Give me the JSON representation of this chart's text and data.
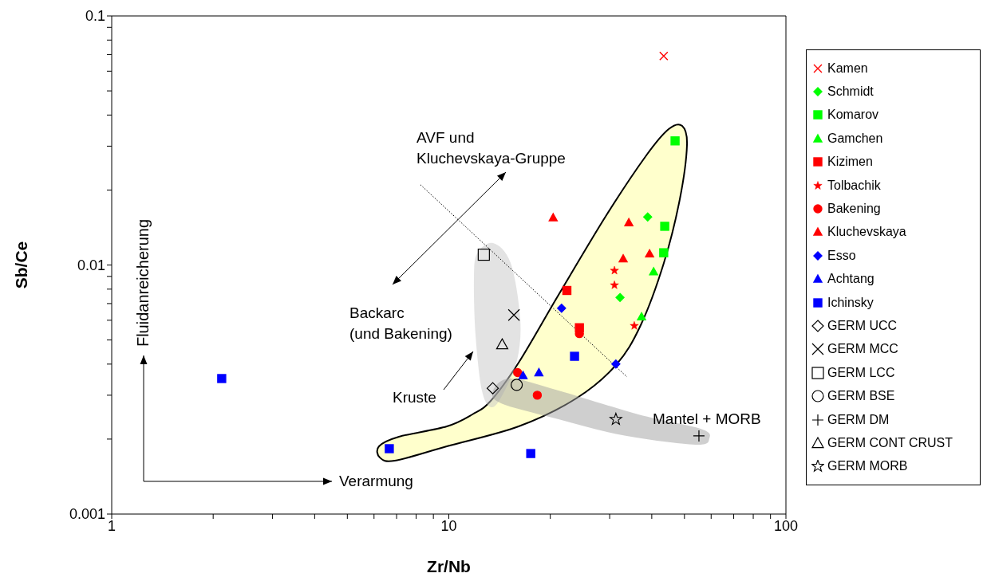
{
  "chart_data": {
    "type": "scatter",
    "xlabel": "Zr/Nb",
    "ylabel": "Sb/Ce",
    "log": "xy",
    "legend": "right",
    "xlim": [
      1,
      100
    ],
    "ylim": [
      0.001,
      0.1
    ],
    "xticks": [
      1,
      {
        "value": 2,
        "label": null
      },
      {
        "value": 3,
        "label": null
      },
      {
        "value": 4,
        "label": null
      },
      {
        "value": 5,
        "label": null
      },
      {
        "value": 6,
        "label": null
      },
      {
        "value": 7,
        "label": null
      },
      {
        "value": 8,
        "label": null
      },
      {
        "value": 9,
        "label": null
      },
      10,
      {
        "value": 20,
        "label": null
      },
      {
        "value": 30,
        "label": null
      },
      {
        "value": 40,
        "label": null
      },
      {
        "value": 50,
        "label": null
      },
      {
        "value": 60,
        "label": null
      },
      {
        "value": 70,
        "label": null
      },
      {
        "value": 80,
        "label": null
      },
      {
        "value": 90,
        "label": null
      },
      100
    ],
    "yticks": [
      0.001,
      {
        "value": 0.002,
        "label": null
      },
      {
        "value": 0.003,
        "label": null
      },
      {
        "value": 0.004,
        "label": null
      },
      {
        "value": 0.005,
        "label": null
      },
      {
        "value": 0.006,
        "label": null
      },
      {
        "value": 0.007,
        "label": null
      },
      {
        "value": 0.008,
        "label": null
      },
      {
        "value": 0.009,
        "label": null
      },
      0.01,
      {
        "value": 0.02,
        "label": null
      },
      {
        "value": 0.03,
        "label": null
      },
      {
        "value": 0.04,
        "label": null
      },
      {
        "value": 0.05,
        "label": null
      },
      {
        "value": 0.06,
        "label": null
      },
      {
        "value": 0.07,
        "label": null
      },
      {
        "value": 0.08,
        "label": null
      },
      {
        "value": 0.09,
        "label": null
      },
      0.1
    ],
    "annotations": [
      "AVF und\nKluchevskaya-Gruppe",
      "Backarc\n(und Bakening)",
      "Kruste",
      "Mantel + MORB",
      "Fluidanreicherung",
      "Verarmung"
    ],
    "series": [
      {
        "name": "Kamen",
        "color": "#ff0000",
        "marker": "cross",
        "x": [
          43.4
        ],
        "values": [
          0.069
        ]
      },
      {
        "name": "Schmidt",
        "color": "#00ff00",
        "marker": "diamond",
        "x": [
          38.9,
          32.2
        ],
        "values": [
          0.0156,
          0.0074
        ]
      },
      {
        "name": "Komarov",
        "color": "#00ff00",
        "marker": "square",
        "x": [
          46.9,
          43.7,
          43.4
        ],
        "values": [
          0.0315,
          0.0143,
          0.0112
        ]
      },
      {
        "name": "Gamchen",
        "color": "#00ff00",
        "marker": "triangle",
        "x": [
          40.5,
          37.3
        ],
        "values": [
          0.0094,
          0.0062
        ]
      },
      {
        "name": "Kizimen",
        "color": "#ff0000",
        "marker": "square",
        "x": [
          22.4,
          24.4
        ],
        "values": [
          0.0079,
          0.0056
        ]
      },
      {
        "name": "Tolbachik",
        "color": "#ff0000",
        "marker": "star",
        "x": [
          31.0,
          31.0,
          35.5
        ],
        "values": [
          0.0095,
          0.0083,
          0.0057
        ]
      },
      {
        "name": "Bakening",
        "color": "#ff0000",
        "marker": "circle",
        "x": [
          24.4,
          16.0,
          18.3
        ],
        "values": [
          0.0053,
          0.0037,
          0.003
        ]
      },
      {
        "name": "Kluchevskaya",
        "color": "#ff0000",
        "marker": "triangle",
        "x": [
          20.4,
          34.2,
          32.9,
          39.4
        ],
        "values": [
          0.0155,
          0.0148,
          0.0106,
          0.0111
        ]
      },
      {
        "name": "Esso",
        "color": "#0000ff",
        "marker": "diamond",
        "x": [
          21.6,
          31.3
        ],
        "values": [
          0.0067,
          0.004
        ]
      },
      {
        "name": "Achtang",
        "color": "#0000ff",
        "marker": "triangle",
        "x": [
          16.6,
          18.5
        ],
        "values": [
          0.0036,
          0.0037
        ]
      },
      {
        "name": "Ichinsky",
        "color": "#0000ff",
        "marker": "square",
        "x": [
          2.12,
          6.66,
          23.6,
          17.5
        ],
        "values": [
          0.0035,
          0.00183,
          0.0043,
          0.00175
        ]
      },
      {
        "name": "GERM UCC",
        "color": "#000000",
        "marker": "diamond-open",
        "x": [
          13.5
        ],
        "values": [
          0.0032
        ]
      },
      {
        "name": "GERM MCC",
        "color": "#000000",
        "marker": "cross-open",
        "x": [
          15.6
        ],
        "values": [
          0.0063
        ]
      },
      {
        "name": "GERM LCC",
        "color": "#000000",
        "marker": "square-open",
        "x": [
          12.7
        ],
        "values": [
          0.011
        ]
      },
      {
        "name": "GERM BSE",
        "color": "#000000",
        "marker": "circle-open",
        "x": [
          15.9
        ],
        "values": [
          0.0033
        ]
      },
      {
        "name": "GERM DM",
        "color": "#000000",
        "x": [
          55.2
        ],
        "values": [
          0.00206
        ]
      },
      {
        "name": "GERM CONT CRUST",
        "color": "#000000",
        "marker": "triangle-open",
        "x": [
          14.4
        ],
        "values": [
          0.0048
        ]
      },
      {
        "name": "GERM MORB",
        "color": "#000000",
        "marker": "star-open",
        "x": [
          31.3
        ],
        "values": [
          0.0024
        ]
      },
      {
        "type": "line",
        "color": "#000000",
        "line_style": "dotted",
        "marker": "none",
        "x": [
          8.24,
          33.8
        ],
        "values": [
          0.021,
          0.00355
        ]
      }
    ]
  }
}
